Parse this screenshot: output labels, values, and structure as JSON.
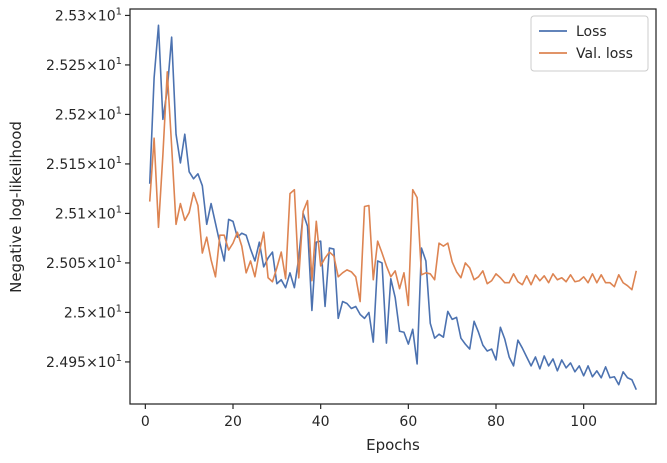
{
  "chart_data": {
    "type": "line",
    "xlabel": "Epochs",
    "ylabel": "Negative log-likelihood",
    "xlim": [
      -3.5,
      116.5
    ],
    "ylim": [
      24.9075,
      25.3065
    ],
    "xticks": [
      0,
      20,
      40,
      60,
      80,
      100
    ],
    "xtick_labels": [
      "0",
      "20",
      "40",
      "60",
      "80",
      "100"
    ],
    "yticks": [
      {
        "value": 24.95,
        "mantissa": "2.495"
      },
      {
        "value": 25.0,
        "mantissa": "2.5"
      },
      {
        "value": 25.05,
        "mantissa": "2.505"
      },
      {
        "value": 25.1,
        "mantissa": "2.51"
      },
      {
        "value": 25.15,
        "mantissa": "2.515"
      },
      {
        "value": 25.2,
        "mantissa": "2.52"
      },
      {
        "value": 25.25,
        "mantissa": "2.525"
      },
      {
        "value": 25.3,
        "mantissa": "2.53"
      }
    ],
    "ytick_suffix": "×10",
    "ytick_exponent": "1",
    "grid": false,
    "legend_position": "top-right",
    "x_start": 1,
    "series": [
      {
        "name": "Loss",
        "color": "#4c72b0",
        "values": [
          25.13,
          25.237,
          25.29,
          25.195,
          25.225,
          25.278,
          25.18,
          25.151,
          25.18,
          25.142,
          25.135,
          25.14,
          25.128,
          25.089,
          25.11,
          25.09,
          25.07,
          25.052,
          25.094,
          25.092,
          25.076,
          25.08,
          25.078,
          25.064,
          25.052,
          25.071,
          25.046,
          25.055,
          25.061,
          25.029,
          25.033,
          25.025,
          25.04,
          25.025,
          25.055,
          25.1,
          25.087,
          25.002,
          25.071,
          25.072,
          25.006,
          25.065,
          25.064,
          24.994,
          25.011,
          25.009,
          25.004,
          25.006,
          24.998,
          24.994,
          25.0,
          24.97,
          25.052,
          25.05,
          24.969,
          25.034,
          25.015,
          24.981,
          24.98,
          24.968,
          24.983,
          24.948,
          25.065,
          25.052,
          24.989,
          24.974,
          24.978,
          24.975,
          25.001,
          24.993,
          24.995,
          24.974,
          24.968,
          24.963,
          24.991,
          24.98,
          24.967,
          24.961,
          24.963,
          24.952,
          24.985,
          24.973,
          24.955,
          24.946,
          24.972,
          24.964,
          24.955,
          24.946,
          24.955,
          24.943,
          24.956,
          24.946,
          24.953,
          24.941,
          24.952,
          24.944,
          24.949,
          24.94,
          24.946,
          24.936,
          24.946,
          24.935,
          24.941,
          24.934,
          24.945,
          24.934,
          24.935,
          24.927,
          24.94,
          24.934,
          24.932,
          24.922
        ]
      },
      {
        "name": "Val. loss",
        "color": "#dd8452",
        "values": [
          25.112,
          25.176,
          25.086,
          25.159,
          25.243,
          25.168,
          25.089,
          25.11,
          25.093,
          25.101,
          25.121,
          25.108,
          25.06,
          25.076,
          25.053,
          25.036,
          25.078,
          25.078,
          25.063,
          25.07,
          25.081,
          25.067,
          25.04,
          25.052,
          25.036,
          25.061,
          25.081,
          25.035,
          25.031,
          25.045,
          25.061,
          25.034,
          25.12,
          25.124,
          25.035,
          25.102,
          25.113,
          25.032,
          25.092,
          25.047,
          25.055,
          25.061,
          25.057,
          25.036,
          25.04,
          25.043,
          25.041,
          25.036,
          25.011,
          25.107,
          25.108,
          25.033,
          25.072,
          25.06,
          25.047,
          25.036,
          25.042,
          25.024,
          25.04,
          25.007,
          25.124,
          25.116,
          25.038,
          25.04,
          25.039,
          25.033,
          25.07,
          25.067,
          25.07,
          25.051,
          25.041,
          25.035,
          25.05,
          25.045,
          25.033,
          25.036,
          25.042,
          25.029,
          25.032,
          25.039,
          25.035,
          25.03,
          25.03,
          25.039,
          25.031,
          25.028,
          25.037,
          25.028,
          25.038,
          25.032,
          25.037,
          25.03,
          25.039,
          25.033,
          25.035,
          25.031,
          25.038,
          25.031,
          25.032,
          25.036,
          25.03,
          25.039,
          25.03,
          25.038,
          25.03,
          25.03,
          25.026,
          25.038,
          25.03,
          25.027,
          25.023,
          25.042
        ]
      }
    ]
  }
}
